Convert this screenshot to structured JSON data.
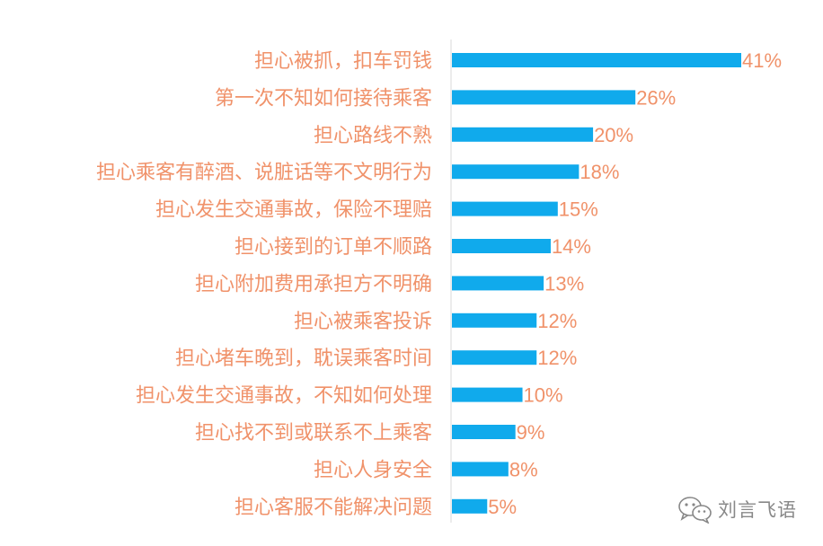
{
  "chart_data": {
    "type": "bar",
    "orientation": "horizontal",
    "categories": [
      "担心被抓，扣车罚钱",
      "第一次不知如何接待乘客",
      "担心路线不熟",
      "担心乘客有醉酒、说脏话等不文明行为",
      "担心发生交通事故，保险不理赔",
      "担心接到的订单不顺路",
      "担心附加费用承担方不明确",
      "担心被乘客投诉",
      "担心堵车晚到，耽误乘客时间",
      "担心发生交通事故，不知如何处理",
      "担心找不到或联系不上乘客",
      "担心人身安全",
      "担心客服不能解决问题"
    ],
    "values": [
      41,
      26,
      20,
      18,
      15,
      14,
      13,
      12,
      12,
      10,
      9,
      8,
      5
    ],
    "value_labels": [
      "41%",
      "26%",
      "20%",
      "18%",
      "15%",
      "14%",
      "13%",
      "12%",
      "12%",
      "10%",
      "9%",
      "8%",
      "5%"
    ],
    "xlim": [
      0,
      45
    ],
    "grid": false,
    "legend": "none"
  },
  "colors": {
    "bar": "#10aaec",
    "label": "#f0926a",
    "axis": "#d9d9d9",
    "watermark": "#888888"
  },
  "watermark": {
    "icon": "wechat-icon",
    "text": "刘言飞语"
  }
}
